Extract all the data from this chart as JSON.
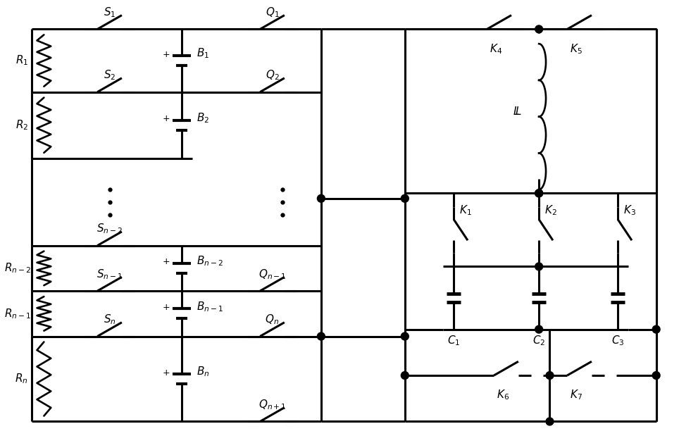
{
  "bg_color": "#ffffff",
  "line_color": "#000000",
  "lw": 2.2,
  "lw_thick": 3.0,
  "fs": 11,
  "fs_small": 9
}
